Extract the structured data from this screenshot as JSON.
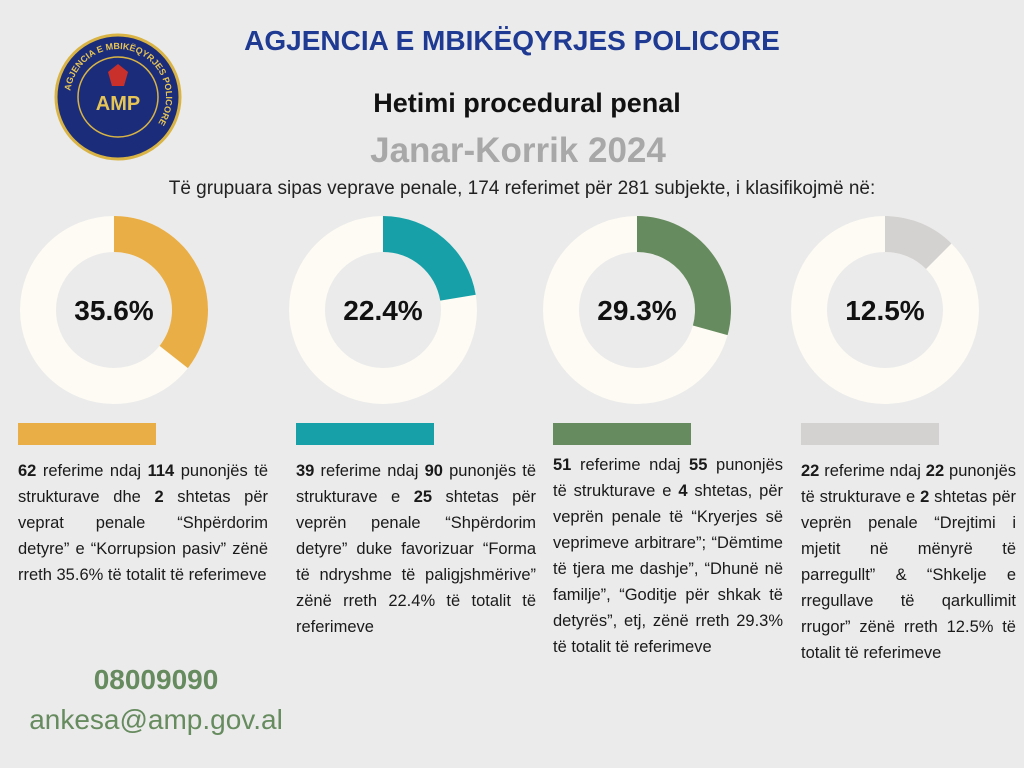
{
  "header": {
    "title": "AGJENCIA E MBIKËQYRJES POLICORE",
    "logo_text": "AMP",
    "subtitle": "Hetimi procedural penal",
    "period": "Janar-Korrik 2024",
    "intro": "Të grupuara sipas veprave penale, 174 referimet për 281 subjekte, i klasifikojmë në:"
  },
  "chart_data": [
    {
      "type": "donut",
      "values": [
        35.6
      ],
      "value_labels": [
        "35.6%"
      ],
      "color": "#e9ae46"
    },
    {
      "type": "donut",
      "values": [
        22.4
      ],
      "value_labels": [
        "22.4%"
      ],
      "color": "#17a0a8"
    },
    {
      "type": "donut",
      "values": [
        29.3
      ],
      "value_labels": [
        "29.3%"
      ],
      "color": "#668b5e"
    },
    {
      "type": "donut",
      "values": [
        12.5
      ],
      "value_labels": [
        "12.5%"
      ],
      "color": "#d4d1d1"
    }
  ],
  "panels": [
    {
      "runs": [
        {
          "text": "62",
          "bold": true
        },
        {
          "text": " referime ndaj "
        },
        {
          "text": "114",
          "bold": true
        },
        {
          "text": " punonjës të strukturave dhe "
        },
        {
          "text": "2",
          "bold": true
        },
        {
          "text": " shtetas për veprat penale “Shpërdorim detyre” e “Korrupsion pasiv” zënë rreth 35.6% të totalit të referimeve"
        }
      ]
    },
    {
      "runs": [
        {
          "text": "39",
          "bold": true
        },
        {
          "text": " referime ndaj "
        },
        {
          "text": "90",
          "bold": true
        },
        {
          "text": " punonjës të strukturave e "
        },
        {
          "text": "25",
          "bold": true
        },
        {
          "text": " shtetas për veprën penale “Shpërdorim detyre” duke favorizuar “Forma të ndryshme të paligjshmërive” zënë rreth 22.4% të totalit të referimeve"
        }
      ]
    },
    {
      "runs": [
        {
          "text": "51",
          "bold": true
        },
        {
          "text": " referime ndaj "
        },
        {
          "text": "55",
          "bold": true
        },
        {
          "text": " punonjës të strukturave e "
        },
        {
          "text": "4",
          "bold": true
        },
        {
          "text": " shtetas, për veprën penale të “Kryerjes së veprimeve arbitrare”; “Dëmtime të tjera me dashje”, “Dhunë në familje”, “Goditje për shkak të detyrës”, etj, zënë rreth 29.3% të totalit të referimeve"
        }
      ]
    },
    {
      "runs": [
        {
          "text": "22",
          "bold": true
        },
        {
          "text": " referime ndaj "
        },
        {
          "text": "22",
          "bold": true
        },
        {
          "text": " punonjës të strukturave e "
        },
        {
          "text": "2",
          "bold": true
        },
        {
          "text": " shtetas për veprën penale “Drejtimi i mjetit në mënyrë të parregullt” & “Shkelje e rregullave të qarkullimit rrugor” zënë rreth 12.5% të totalit të referimeve"
        }
      ]
    }
  ],
  "footer": {
    "phone": "08009090",
    "email": "ankesa@amp.gov.al"
  }
}
